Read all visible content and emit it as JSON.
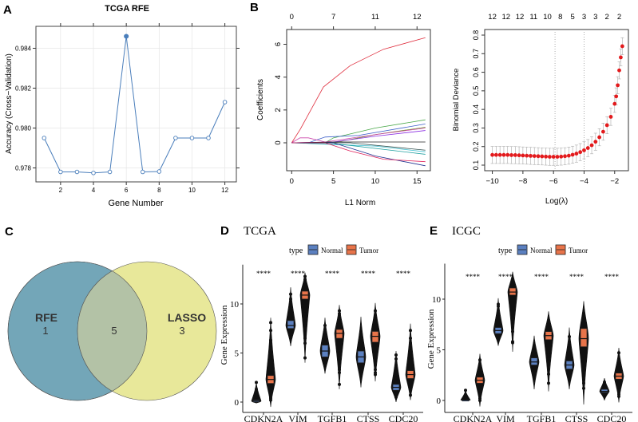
{
  "panels": {
    "a": "A",
    "b": "B",
    "c": "C",
    "d": "D",
    "e": "E"
  },
  "chart_data": [
    {
      "id": "rfe",
      "type": "line",
      "title": "TCGA RFE",
      "xlabel": "Gene Number",
      "ylabel": "Accuracy (Cross−Validation)",
      "x": [
        1,
        2,
        3,
        4,
        5,
        6,
        7,
        8,
        9,
        10,
        11,
        12
      ],
      "y": [
        0.9795,
        0.9778,
        0.9778,
        0.97775,
        0.9778,
        0.9846,
        0.9778,
        0.97782,
        0.9795,
        0.9795,
        0.9795,
        0.9813
      ],
      "highlight_x": 6,
      "xticks": [
        2,
        4,
        6,
        8,
        10,
        12
      ],
      "yticks": [
        0.978,
        0.98,
        0.982,
        0.984
      ],
      "ytick_labels": [
        "0.978",
        "0.980",
        "0.982",
        "0.984"
      ],
      "xlim": [
        0.5,
        12.7
      ],
      "ylim": [
        0.9773,
        0.9851
      ],
      "grid": true,
      "color": "#4a7ebb"
    },
    {
      "id": "lasso-path",
      "type": "line",
      "xlabel": "L1 Norm",
      "ylabel": "Coefficients",
      "xticks": [
        0,
        5,
        10,
        15
      ],
      "yticks": [
        0,
        2,
        4,
        6
      ],
      "top_ticks": [
        {
          "at": 0,
          "label": "0"
        },
        {
          "at": 5,
          "label": "7"
        },
        {
          "at": 10,
          "label": "11"
        },
        {
          "at": 15,
          "label": "12"
        }
      ],
      "xlim": [
        -0.6,
        16.6
      ],
      "ylim": [
        -1.7,
        6.9
      ],
      "series": [
        {
          "color": "#df2c3c",
          "points": [
            [
              0,
              0
            ],
            [
              1,
              0.8
            ],
            [
              3.8,
              3.4
            ],
            [
              7,
              4.7
            ],
            [
              11,
              5.7
            ],
            [
              16,
              6.4
            ]
          ]
        },
        {
          "color": "#4aa84a",
          "points": [
            [
              0,
              0
            ],
            [
              4,
              0
            ],
            [
              5,
              0.3
            ],
            [
              10,
              0.9
            ],
            [
              16,
              1.4
            ]
          ]
        },
        {
          "color": "#3b5fc8",
          "points": [
            [
              0,
              0
            ],
            [
              2,
              0
            ],
            [
              4,
              0.35
            ],
            [
              8,
              0.45
            ],
            [
              16,
              1.15
            ]
          ]
        },
        {
          "color": "#6b8e23",
          "points": [
            [
              0,
              0
            ],
            [
              5,
              0
            ],
            [
              10,
              0.5
            ],
            [
              16,
              0.95
            ]
          ]
        },
        {
          "color": "#8a2be2",
          "points": [
            [
              0,
              0
            ],
            [
              5,
              0.05
            ],
            [
              10,
              0.4
            ],
            [
              16,
              0.75
            ]
          ]
        },
        {
          "color": "#cc44aa",
          "points": [
            [
              0,
              0
            ],
            [
              1,
              0.3
            ],
            [
              2,
              0.3
            ],
            [
              4,
              0.05
            ],
            [
              10,
              0.5
            ],
            [
              16,
              0.9
            ]
          ]
        },
        {
          "color": "#222222",
          "points": [
            [
              0,
              0
            ],
            [
              5,
              0.05
            ],
            [
              16,
              0.05
            ]
          ]
        },
        {
          "color": "#2f4f4f",
          "points": [
            [
              0,
              0
            ],
            [
              7,
              0
            ],
            [
              16,
              -0.45
            ]
          ]
        },
        {
          "color": "#40c0d0",
          "points": [
            [
              0,
              0
            ],
            [
              5,
              -0.1
            ],
            [
              10,
              -0.2
            ],
            [
              16,
              -0.55
            ]
          ]
        },
        {
          "color": "#20a0a0",
          "points": [
            [
              0,
              0
            ],
            [
              6,
              -0.1
            ],
            [
              16,
              -0.7
            ]
          ]
        },
        {
          "color": "#1f2f8f",
          "points": [
            [
              0,
              0
            ],
            [
              5,
              0
            ],
            [
              10,
              -0.8
            ],
            [
              16,
              -1.4
            ]
          ]
        },
        {
          "color": "#e0205a",
          "points": [
            [
              0,
              0
            ],
            [
              4,
              0
            ],
            [
              7,
              -0.5
            ],
            [
              11,
              -1.0
            ],
            [
              16,
              -1.15
            ]
          ]
        }
      ]
    },
    {
      "id": "lasso-cv",
      "type": "scatter",
      "xlabel": "Log(λ)",
      "ylabel": "Binomial Deviance",
      "xticks": [
        -10,
        -8,
        -6,
        -4,
        -2
      ],
      "xtick_labels": [
        "−10",
        "−8",
        "−6",
        "−4",
        "−2"
      ],
      "yticks": [
        0.1,
        0.2,
        0.3,
        0.4,
        0.5,
        0.6,
        0.7,
        0.8
      ],
      "ytick_labels": [
        "0.1",
        "0.2",
        "0.3",
        "0.4",
        "0.5",
        "0.6",
        "0.7",
        "0.8"
      ],
      "top_ticks": [
        {
          "at": -10,
          "label": "12"
        },
        {
          "at": -9.1,
          "label": "12"
        },
        {
          "at": -8.2,
          "label": "12"
        },
        {
          "at": -7.3,
          "label": "11"
        },
        {
          "at": -6.4,
          "label": "10"
        },
        {
          "at": -5.55,
          "label": "8"
        },
        {
          "at": -4.75,
          "label": "5"
        },
        {
          "at": -4.0,
          "label": "3"
        },
        {
          "at": -3.25,
          "label": "3"
        },
        {
          "at": -2.5,
          "label": "2"
        },
        {
          "at": -1.7,
          "label": "2"
        }
      ],
      "vlines": [
        -5.9,
        -4.0
      ],
      "xlim": [
        -10.5,
        -1.1
      ],
      "ylim": [
        0.07,
        0.83
      ],
      "log_lambda": [
        -10,
        -9.75,
        -9.5,
        -9.25,
        -9,
        -8.75,
        -8.5,
        -8.25,
        -8,
        -7.75,
        -7.5,
        -7.25,
        -7,
        -6.75,
        -6.5,
        -6.25,
        -6,
        -5.75,
        -5.5,
        -5.25,
        -5,
        -4.75,
        -4.5,
        -4.25,
        -4,
        -3.75,
        -3.5,
        -3.25,
        -3,
        -2.75,
        -2.5,
        -2.25,
        -2,
        -1.9,
        -1.8,
        -1.7,
        -1.6,
        -1.5
      ],
      "deviance": [
        0.155,
        0.155,
        0.155,
        0.155,
        0.155,
        0.154,
        0.154,
        0.153,
        0.152,
        0.151,
        0.15,
        0.149,
        0.148,
        0.147,
        0.146,
        0.145,
        0.145,
        0.145,
        0.146,
        0.148,
        0.151,
        0.156,
        0.162,
        0.17,
        0.18,
        0.192,
        0.207,
        0.226,
        0.25,
        0.28,
        0.315,
        0.36,
        0.43,
        0.47,
        0.53,
        0.61,
        0.68,
        0.74
      ],
      "se": 0.046,
      "point_color": "#e31a1c",
      "errorbar_color": "#aaaaaa"
    },
    {
      "id": "venn",
      "type": "venn",
      "sets": [
        {
          "label": "RFE",
          "only": "1",
          "color": "#73a6b8"
        },
        {
          "label": "LASSO",
          "only": "3",
          "color": "#e8e89a"
        }
      ],
      "intersection": "5",
      "intersection_color": "#b3c2a6"
    },
    {
      "id": "tcga-violin",
      "type": "violin",
      "title": "TCGA",
      "ylabel": "Gene Expression",
      "legend_title": "type",
      "legend": [
        {
          "label": "Normal",
          "color": "#5b80c0"
        },
        {
          "label": "Tumor",
          "color": "#e8744a"
        }
      ],
      "yticks": [
        0,
        5,
        10
      ],
      "ylim": [
        -1,
        14
      ],
      "significance": "****",
      "categories": [
        "CDKN2A",
        "VIM",
        "TGFB1",
        "CTSS",
        "CDC20"
      ],
      "groups": [
        {
          "normal": {
            "median": 0.1,
            "q1": 0,
            "q3": 0.2,
            "min": -0.1,
            "max": 2.0,
            "outliers": [
              0.5,
              0.7,
              1.3,
              2.0
            ]
          },
          "tumor": {
            "median": 2.3,
            "q1": 1.9,
            "q3": 2.7,
            "min": -0.5,
            "max": 8.6,
            "outliers": [
              0.2,
              0.4,
              4.5,
              5,
              5.5,
              6,
              6.3,
              7.3,
              8.1
            ]
          }
        },
        {
          "normal": {
            "median": 7.8,
            "q1": 7.5,
            "q3": 8.3,
            "min": 5.7,
            "max": 11.7,
            "outliers": [
              10.5,
              11
            ]
          },
          "tumor": {
            "median": 10.9,
            "q1": 10.5,
            "q3": 11.3,
            "min": 4.0,
            "max": 13.2,
            "outliers": [
              4.5,
              6,
              6.5,
              7,
              7.5,
              8,
              8.5,
              9,
              12,
              12.5,
              12.8
            ]
          }
        },
        {
          "normal": {
            "median": 5.2,
            "q1": 4.6,
            "q3": 5.8,
            "min": 2.9,
            "max": 8.6,
            "outliers": [
              7.8
            ]
          },
          "tumor": {
            "median": 7.0,
            "q1": 6.5,
            "q3": 7.4,
            "min": 1.3,
            "max": 9.9,
            "outliers": [
              1.8,
              3,
              3.3,
              4,
              4.5,
              5,
              8.5,
              9,
              9.3
            ]
          }
        },
        {
          "normal": {
            "median": 4.6,
            "q1": 4.0,
            "q3": 5.2,
            "min": 1.5,
            "max": 8.7,
            "outliers": []
          },
          "tumor": {
            "median": 6.7,
            "q1": 6.1,
            "q3": 7.2,
            "min": 2.1,
            "max": 10.1,
            "outliers": [
              2.8,
              3,
              3.3,
              3.8,
              9.3
            ]
          }
        },
        {
          "normal": {
            "median": 1.5,
            "q1": 1.2,
            "q3": 1.8,
            "min": 0,
            "max": 5.2,
            "outliers": [
              0.5,
              2.5,
              3,
              4.4,
              4.8
            ]
          },
          "tumor": {
            "median": 2.8,
            "q1": 2.4,
            "q3": 3.2,
            "min": 0.2,
            "max": 8.0,
            "outliers": [
              0.7,
              4.5,
              5,
              5.5,
              6,
              6.5,
              7.3
            ]
          }
        }
      ]
    },
    {
      "id": "icgc-violin",
      "type": "violin",
      "title": "ICGC",
      "ylabel": "Gene Expression",
      "legend_title": "type",
      "legend": [
        {
          "label": "Normal",
          "color": "#5b80c0"
        },
        {
          "label": "Tumor",
          "color": "#e8744a"
        }
      ],
      "yticks": [
        0,
        5,
        10
      ],
      "ylim": [
        -1,
        13.5
      ],
      "significance": "****",
      "categories": [
        "CDKN2A",
        "VIM",
        "TGFB1",
        "CTSS",
        "CDC20"
      ],
      "groups": [
        {
          "normal": {
            "median": 0.05,
            "q1": 0,
            "q3": 0.1,
            "min": 0,
            "max": 1.0,
            "outliers": [
              0.2,
              1.0
            ]
          },
          "tumor": {
            "median": 2.0,
            "q1": 1.7,
            "q3": 2.3,
            "min": -0.6,
            "max": 4.6,
            "outliers": [
              0,
              0.2,
              4.0
            ]
          }
        },
        {
          "normal": {
            "median": 6.9,
            "q1": 6.6,
            "q3": 7.2,
            "min": 5.4,
            "max": 10.1,
            "outliers": [
              9.3,
              9.5
            ]
          },
          "tumor": {
            "median": 10.7,
            "q1": 10.4,
            "q3": 11.1,
            "min": 4.8,
            "max": 12.7,
            "outliers": [
              5.7,
              5.8,
              6.8,
              7.8,
              8.4
            ]
          }
        },
        {
          "normal": {
            "median": 3.8,
            "q1": 3.5,
            "q3": 4.2,
            "min": 1.1,
            "max": 6.4,
            "outliers": []
          },
          "tumor": {
            "median": 6.4,
            "q1": 6.0,
            "q3": 6.8,
            "min": 0.9,
            "max": 8.8,
            "outliers": [
              1.7,
              2.6,
              4.1,
              4.5
            ]
          }
        },
        {
          "normal": {
            "median": 3.5,
            "q1": 3.1,
            "q3": 3.9,
            "min": 1.1,
            "max": 7.2,
            "outliers": [
              5.4,
              6.3
            ]
          },
          "tumor": {
            "median": 6.1,
            "q1": 5.3,
            "q3": 7.1,
            "min": -0.4,
            "max": 9.8,
            "outliers": [
              1.2,
              1.7,
              2.4,
              2.5
            ]
          }
        },
        {
          "normal": {
            "median": 0.9,
            "q1": 0.8,
            "q3": 1.1,
            "min": 0,
            "max": 2.2,
            "outliers": [
              1.8
            ]
          },
          "tumor": {
            "median": 2.4,
            "q1": 2.1,
            "q3": 2.7,
            "min": -0.2,
            "max": 5.2,
            "outliers": [
              0.4,
              0.6,
              1,
              3.7,
              4.7
            ]
          }
        }
      ]
    }
  ]
}
